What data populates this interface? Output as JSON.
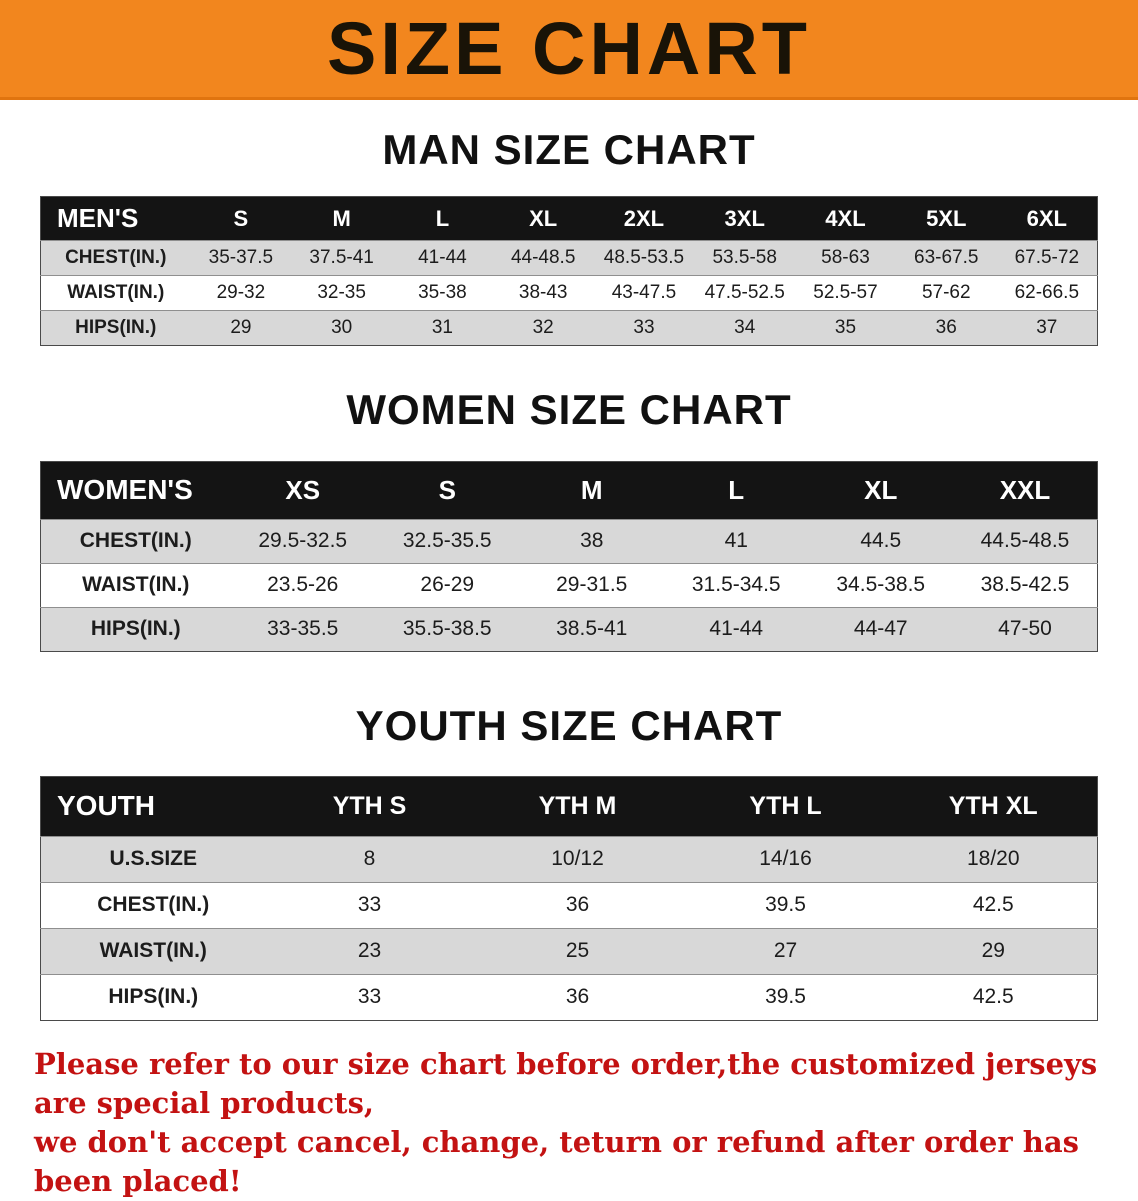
{
  "banner": {
    "title": "SIZE CHART"
  },
  "colors": {
    "banner_bg": "#f2861e",
    "table_header_bg": "#141414",
    "row_alt_bg": "#d8d8d8",
    "footer_text": "#c31212"
  },
  "chart_data": [
    {
      "type": "table",
      "title": "MAN SIZE CHART",
      "corner_label": "MEN'S",
      "columns": [
        "S",
        "M",
        "L",
        "XL",
        "2XL",
        "3XL",
        "4XL",
        "5XL",
        "6XL"
      ],
      "rows": [
        {
          "label": "CHEST(IN.)",
          "values": [
            "35-37.5",
            "37.5-41",
            "41-44",
            "44-48.5",
            "48.5-53.5",
            "53.5-58",
            "58-63",
            "63-67.5",
            "67.5-72"
          ]
        },
        {
          "label": "WAIST(IN.)",
          "values": [
            "29-32",
            "32-35",
            "35-38",
            "38-43",
            "43-47.5",
            "47.5-52.5",
            "52.5-57",
            "57-62",
            "62-66.5"
          ]
        },
        {
          "label": "HIPS(IN.)",
          "values": [
            "29",
            "30",
            "31",
            "32",
            "33",
            "34",
            "35",
            "36",
            "37"
          ]
        }
      ]
    },
    {
      "type": "table",
      "title": "WOMEN SIZE CHART",
      "corner_label": "WOMEN'S",
      "columns": [
        "XS",
        "S",
        "M",
        "L",
        "XL",
        "XXL"
      ],
      "rows": [
        {
          "label": "CHEST(IN.)",
          "values": [
            "29.5-32.5",
            "32.5-35.5",
            "38",
            "41",
            "44.5",
            "44.5-48.5"
          ]
        },
        {
          "label": "WAIST(IN.)",
          "values": [
            "23.5-26",
            "26-29",
            "29-31.5",
            "31.5-34.5",
            "34.5-38.5",
            "38.5-42.5"
          ]
        },
        {
          "label": "HIPS(IN.)",
          "values": [
            "33-35.5",
            "35.5-38.5",
            "38.5-41",
            "41-44",
            "44-47",
            "47-50"
          ]
        }
      ]
    },
    {
      "type": "table",
      "title": "YOUTH SIZE CHART",
      "corner_label": "YOUTH",
      "columns": [
        "YTH S",
        "YTH M",
        "YTH L",
        "YTH XL"
      ],
      "rows": [
        {
          "label": "U.S.SIZE",
          "values": [
            "8",
            "10/12",
            "14/16",
            "18/20"
          ]
        },
        {
          "label": "CHEST(IN.)",
          "values": [
            "33",
            "36",
            "39.5",
            "42.5"
          ]
        },
        {
          "label": "WAIST(IN.)",
          "values": [
            "23",
            "25",
            "27",
            "29"
          ]
        },
        {
          "label": "HIPS(IN.)",
          "values": [
            "33",
            "36",
            "39.5",
            "42.5"
          ]
        }
      ]
    }
  ],
  "footer": {
    "line1": "Please refer to our size chart before order,the customized jerseys are special products,",
    "line2": "we don't accept cancel, change, teturn or refund after order has been placed!"
  }
}
